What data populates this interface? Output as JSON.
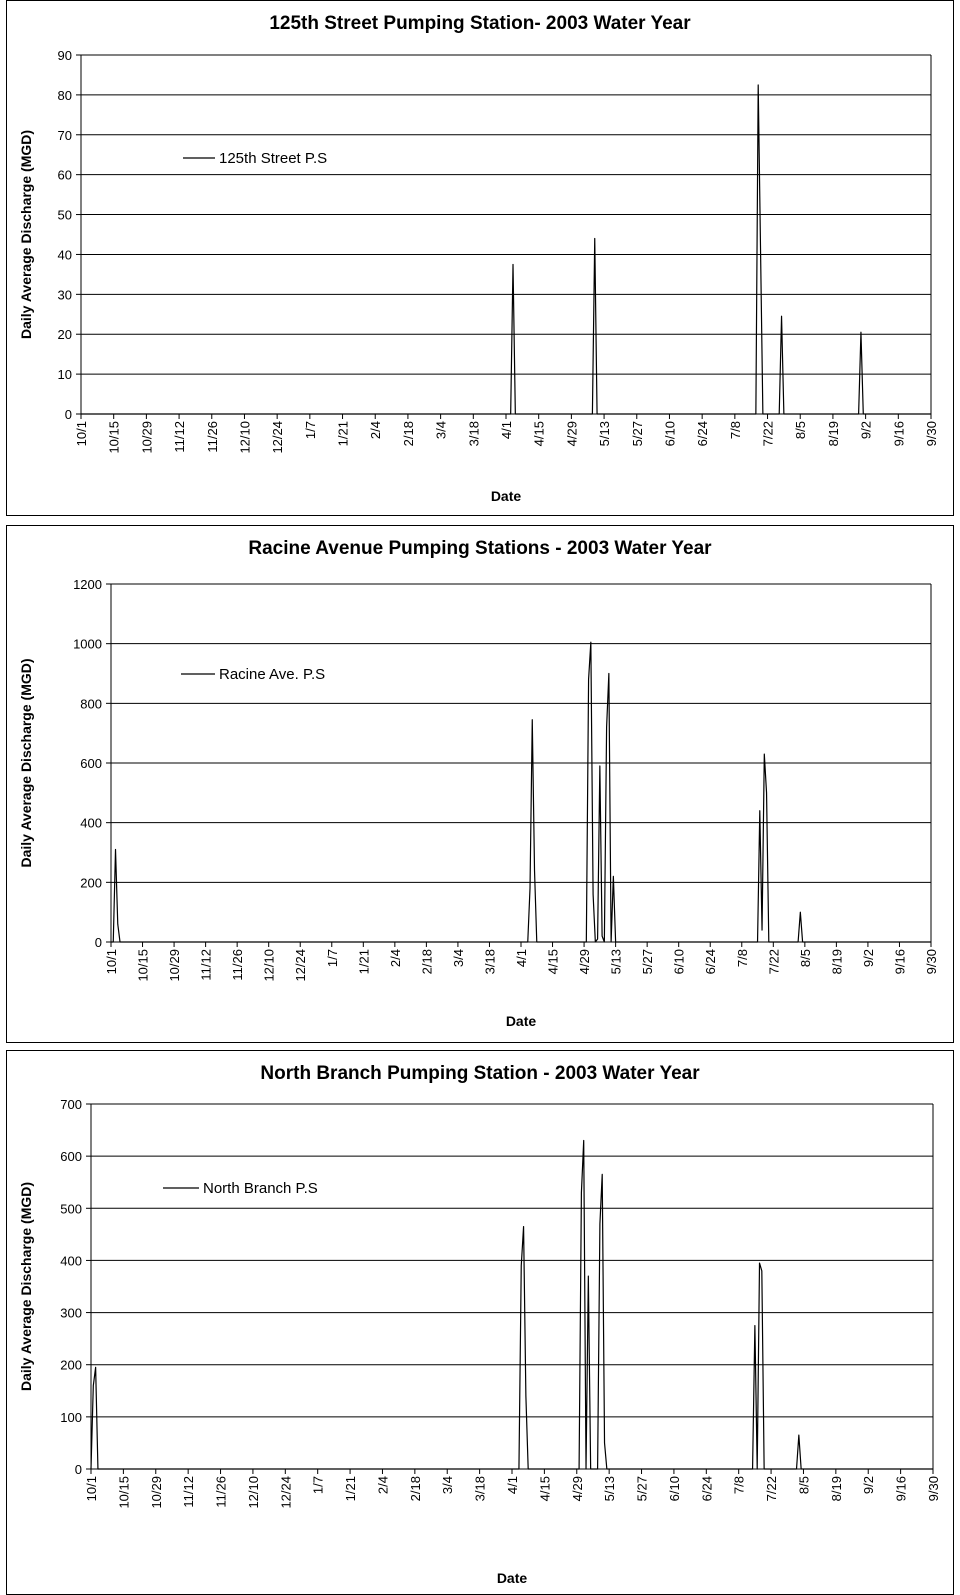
{
  "chart_data": [
    {
      "type": "line",
      "title": "125th Street Pumping Station- 2003 Water Year",
      "xlabel": "Date",
      "ylabel": "Daily Average Discharge (MGD)",
      "ylim": [
        0,
        90
      ],
      "yticks": [
        0,
        10,
        20,
        30,
        40,
        50,
        60,
        70,
        80,
        90
      ],
      "x_tick_labels": [
        "10/1",
        "10/15",
        "10/29",
        "11/12",
        "11/26",
        "12/10",
        "12/24",
        "1/7",
        "1/21",
        "2/4",
        "2/18",
        "3/4",
        "3/18",
        "4/1",
        "4/15",
        "4/29",
        "5/13",
        "5/27",
        "6/10",
        "6/24",
        "7/8",
        "7/22",
        "8/5",
        "8/19",
        "9/2",
        "9/16",
        "9/30"
      ],
      "grid": "horizontal",
      "legend_position": "upper-left",
      "series": [
        {
          "name": "125th Street P.S",
          "points": [
            [
              "10/1",
              0
            ],
            [
              "4/3",
              0
            ],
            [
              "4/4",
              37.5
            ],
            [
              "4/5",
              0
            ],
            [
              "5/8",
              0
            ],
            [
              "5/9",
              44
            ],
            [
              "5/10",
              0
            ],
            [
              "7/17",
              0
            ],
            [
              "7/18",
              82.5
            ],
            [
              "7/20",
              0
            ],
            [
              "7/27",
              0
            ],
            [
              "7/28",
              24.5
            ],
            [
              "7/29",
              0
            ],
            [
              "8/30",
              0
            ],
            [
              "8/31",
              20.5
            ],
            [
              "9/1",
              0
            ],
            [
              "9/30",
              0
            ]
          ]
        }
      ]
    },
    {
      "type": "line",
      "title": "Racine Avenue Pumping Stations - 2003 Water Year",
      "xlabel": "Date",
      "ylabel": "Daily Average Discharge (MGD)",
      "ylim": [
        0,
        1200
      ],
      "yticks": [
        0,
        200,
        400,
        600,
        800,
        1000,
        1200
      ],
      "x_tick_labels": [
        "10/1",
        "10/15",
        "10/29",
        "11/12",
        "11/26",
        "12/10",
        "12/24",
        "1/7",
        "1/21",
        "2/4",
        "2/18",
        "3/4",
        "3/18",
        "4/1",
        "4/15",
        "4/29",
        "5/13",
        "5/27",
        "6/10",
        "6/24",
        "7/8",
        "7/22",
        "8/5",
        "8/19",
        "9/2",
        "9/16",
        "9/30"
      ],
      "grid": "horizontal",
      "legend_position": "upper-left",
      "series": [
        {
          "name": "Racine Ave. P.S",
          "points": [
            [
              "10/1",
              0
            ],
            [
              "10/2",
              0
            ],
            [
              "10/3",
              310
            ],
            [
              "10/4",
              60
            ],
            [
              "10/5",
              0
            ],
            [
              "4/4",
              0
            ],
            [
              "4/5",
              180
            ],
            [
              "4/6",
              745
            ],
            [
              "4/7",
              240
            ],
            [
              "4/8",
              0
            ],
            [
              "4/30",
              0
            ],
            [
              "5/1",
              880
            ],
            [
              "5/2",
              1005
            ],
            [
              "5/3",
              160
            ],
            [
              "5/4",
              0
            ],
            [
              "5/5",
              10
            ],
            [
              "5/6",
              590
            ],
            [
              "5/7",
              20
            ],
            [
              "5/8",
              0
            ],
            [
              "5/9",
              720
            ],
            [
              "5/10",
              900
            ],
            [
              "5/11",
              0
            ],
            [
              "5/12",
              220
            ],
            [
              "5/13",
              0
            ],
            [
              "7/15",
              0
            ],
            [
              "7/16",
              440
            ],
            [
              "7/17",
              40
            ],
            [
              "7/18",
              630
            ],
            [
              "7/19",
              500
            ],
            [
              "7/20",
              0
            ],
            [
              "8/2",
              0
            ],
            [
              "8/3",
              100
            ],
            [
              "8/4",
              0
            ],
            [
              "9/30",
              0
            ]
          ]
        }
      ]
    },
    {
      "type": "line",
      "title": "North Branch Pumping Station - 2003 Water Year",
      "xlabel": "Date",
      "ylabel": "Daily Average Discharge (MGD)",
      "ylim": [
        0,
        700
      ],
      "yticks": [
        0,
        100,
        200,
        300,
        400,
        500,
        600,
        700
      ],
      "x_tick_labels": [
        "10/1",
        "10/15",
        "10/29",
        "11/12",
        "11/26",
        "12/10",
        "12/24",
        "1/7",
        "1/21",
        "2/4",
        "2/18",
        "3/4",
        "3/18",
        "4/1",
        "4/15",
        "4/29",
        "5/13",
        "5/27",
        "6/10",
        "6/24",
        "7/8",
        "7/22",
        "8/5",
        "8/19",
        "9/2",
        "9/16",
        "9/30"
      ],
      "grid": "horizontal",
      "legend_position": "upper-left",
      "series": [
        {
          "name": "North Branch P.S",
          "points": [
            [
              "10/1",
              0
            ],
            [
              "10/2",
              160
            ],
            [
              "10/3",
              195
            ],
            [
              "10/4",
              0
            ],
            [
              "4/4",
              0
            ],
            [
              "4/5",
              390
            ],
            [
              "4/6",
              465
            ],
            [
              "4/7",
              140
            ],
            [
              "4/8",
              0
            ],
            [
              "4/30",
              0
            ],
            [
              "5/1",
              530
            ],
            [
              "5/2",
              630
            ],
            [
              "5/3",
              0
            ],
            [
              "5/4",
              370
            ],
            [
              "5/5",
              0
            ],
            [
              "5/8",
              0
            ],
            [
              "5/9",
              470
            ],
            [
              "5/10",
              565
            ],
            [
              "5/11",
              50
            ],
            [
              "5/12",
              0
            ],
            [
              "7/14",
              0
            ],
            [
              "7/15",
              275
            ],
            [
              "7/16",
              0
            ],
            [
              "7/17",
              395
            ],
            [
              "7/18",
              380
            ],
            [
              "7/19",
              0
            ],
            [
              "8/2",
              0
            ],
            [
              "8/3",
              65
            ],
            [
              "8/4",
              0
            ],
            [
              "9/30",
              0
            ]
          ]
        }
      ]
    }
  ]
}
